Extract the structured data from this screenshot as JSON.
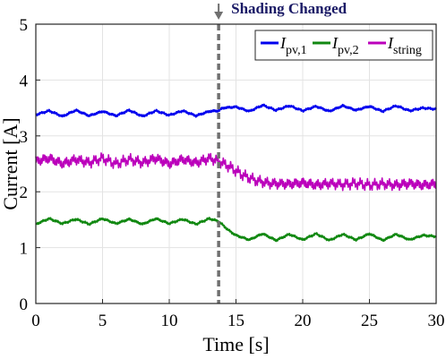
{
  "chart_data": {
    "type": "line",
    "xlabel": "Time [s]",
    "ylabel": "Current [A]",
    "xlim": [
      0,
      30
    ],
    "ylim": [
      0,
      5
    ],
    "xticks": [
      "0",
      "5",
      "10",
      "15",
      "20",
      "25",
      "30"
    ],
    "yticks": [
      "0",
      "1",
      "2",
      "3",
      "4",
      "5"
    ],
    "grid": true,
    "legend_position": "top-right",
    "annotation": {
      "text": "Shading Changed",
      "x": 13.7,
      "color": "#1a1a66"
    },
    "series": [
      {
        "name_main": "I",
        "name_sub": "pv,1",
        "color": "#0000ee",
        "x": [
          0,
          1,
          2,
          3,
          4,
          5,
          6,
          7,
          8,
          9,
          10,
          11,
          12,
          13,
          13.7,
          14,
          15,
          16,
          17,
          18,
          19,
          20,
          21,
          22,
          23,
          24,
          25,
          26,
          27,
          28,
          29,
          30
        ],
        "values": [
          3.38,
          3.45,
          3.35,
          3.46,
          3.36,
          3.44,
          3.36,
          3.46,
          3.35,
          3.45,
          3.37,
          3.45,
          3.36,
          3.44,
          3.45,
          3.5,
          3.52,
          3.44,
          3.55,
          3.46,
          3.54,
          3.45,
          3.53,
          3.44,
          3.54,
          3.46,
          3.53,
          3.44,
          3.54,
          3.45,
          3.5,
          3.48
        ]
      },
      {
        "name_main": "I",
        "name_sub": "pv,2",
        "color": "#118811",
        "x": [
          0,
          1,
          2,
          3,
          4,
          5,
          6,
          7,
          8,
          9,
          10,
          11,
          12,
          13,
          13.7,
          14.5,
          15,
          16,
          17,
          18,
          19,
          20,
          21,
          22,
          23,
          24,
          25,
          26,
          27,
          28,
          29,
          30
        ],
        "values": [
          1.42,
          1.52,
          1.43,
          1.51,
          1.42,
          1.52,
          1.43,
          1.51,
          1.42,
          1.52,
          1.43,
          1.51,
          1.42,
          1.52,
          1.47,
          1.3,
          1.22,
          1.14,
          1.25,
          1.13,
          1.24,
          1.14,
          1.25,
          1.13,
          1.24,
          1.14,
          1.25,
          1.13,
          1.24,
          1.14,
          1.22,
          1.2
        ]
      },
      {
        "name_main": "I",
        "name_sub": "string",
        "color": "#bb00bb",
        "x": [
          0,
          1,
          2,
          3,
          4,
          5,
          6,
          7,
          8,
          9,
          10,
          11,
          12,
          13,
          13.7,
          14.5,
          15.5,
          16.5,
          17.5,
          19,
          20,
          21,
          22,
          23,
          24,
          25,
          26,
          27,
          28,
          29,
          30
        ],
        "values": [
          2.55,
          2.6,
          2.5,
          2.58,
          2.52,
          2.6,
          2.5,
          2.58,
          2.52,
          2.6,
          2.5,
          2.58,
          2.52,
          2.6,
          2.55,
          2.45,
          2.3,
          2.2,
          2.15,
          2.14,
          2.16,
          2.12,
          2.15,
          2.13,
          2.15,
          2.12,
          2.14,
          2.12,
          2.15,
          2.12,
          2.14
        ]
      }
    ]
  }
}
